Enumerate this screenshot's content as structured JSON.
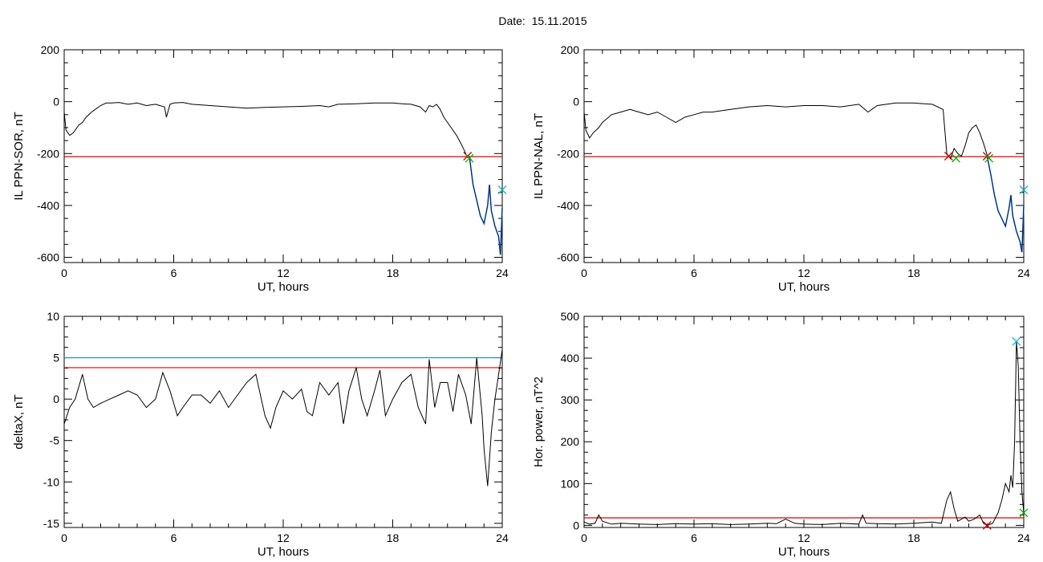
{
  "title": "Date:  15.11.2015",
  "colors": {
    "series": "#000000",
    "threshold": "#e00000",
    "threshold2": "#1a8fb0",
    "highlight": "#1560d8",
    "marker_red": "#cc0000",
    "marker_green": "#00b000",
    "marker_cyan": "#1fb0c8"
  },
  "chart_data": [
    {
      "type": "line",
      "id": "ppn-sor",
      "xlabel": "UT, hours",
      "ylabel": "IL PPN-SOR, nT",
      "xlim": [
        0,
        24
      ],
      "ylim": [
        -620,
        200
      ],
      "xticks": [
        0,
        6,
        12,
        18,
        24
      ],
      "yticks": [
        200,
        0,
        -200,
        -400,
        -600
      ],
      "threshold": -212,
      "series": [
        {
          "x": [
            0,
            0.1,
            0.3,
            0.5,
            0.8,
            1.0,
            1.2,
            1.5,
            1.8,
            2.0,
            2.3,
            2.6,
            3.0,
            3.5,
            4.0,
            4.5,
            5.0,
            5.5,
            5.6,
            5.8,
            6.0,
            6.5,
            7.0,
            8.0,
            9.0,
            10.0,
            11.0,
            12.0,
            13.0,
            14.0,
            14.5,
            15.0,
            16.0,
            17.0,
            18.0,
            18.5,
            19.0,
            19.5,
            19.8,
            20.0,
            20.2,
            20.4,
            20.6,
            20.8,
            21.0,
            21.2,
            21.5,
            21.8,
            22.0,
            22.1,
            22.2
          ],
          "y": [
            -40,
            -110,
            -130,
            -120,
            -90,
            -80,
            -60,
            -40,
            -25,
            -15,
            -5,
            -5,
            -3,
            -10,
            -5,
            -15,
            -10,
            -20,
            -60,
            -10,
            -5,
            -3,
            -10,
            -15,
            -20,
            -25,
            -22,
            -20,
            -18,
            -15,
            -20,
            -10,
            -8,
            -5,
            -5,
            -8,
            -10,
            -20,
            -40,
            -15,
            -20,
            -10,
            -30,
            -60,
            -80,
            -100,
            -130,
            -170,
            -200,
            -215,
            -210
          ]
        }
      ],
      "highlight": {
        "x": [
          22.2,
          22.4,
          22.6,
          22.8,
          23.0,
          23.2,
          23.3,
          23.4,
          23.6,
          23.8,
          23.9,
          24.0
        ],
        "y": [
          -210,
          -320,
          -380,
          -440,
          -470,
          -400,
          -320,
          -420,
          -480,
          -520,
          -590,
          -410
        ]
      },
      "markers": [
        {
          "x": 22.1,
          "y": -210,
          "color": "marker_red"
        },
        {
          "x": 22.2,
          "y": -218,
          "color": "marker_green"
        },
        {
          "x": 24.0,
          "y": -340,
          "color": "marker_cyan"
        }
      ]
    },
    {
      "type": "line",
      "id": "ppn-nal",
      "xlabel": "UT, hours",
      "ylabel": "IL PPN-NAL, nT",
      "xlim": [
        0,
        24
      ],
      "ylim": [
        -620,
        200
      ],
      "xticks": [
        0,
        6,
        12,
        18,
        24
      ],
      "yticks": [
        200,
        0,
        -200,
        -400,
        -600
      ],
      "threshold": -212,
      "series": [
        {
          "x": [
            0,
            0.1,
            0.3,
            0.5,
            0.8,
            1.0,
            1.5,
            2.0,
            2.5,
            3.0,
            3.5,
            4.0,
            4.5,
            5.0,
            5.5,
            6.0,
            6.5,
            7.0,
            8.0,
            9.0,
            10.0,
            11.0,
            12.0,
            13.0,
            14.0,
            15.0,
            15.5,
            16.0,
            17.0,
            18.0,
            19.0,
            19.6,
            19.8,
            19.9,
            20.0,
            20.2,
            20.4,
            20.6,
            20.8,
            21.0,
            21.2,
            21.4,
            21.6,
            21.8,
            22.0
          ],
          "y": [
            -40,
            -110,
            -140,
            -120,
            -100,
            -80,
            -50,
            -40,
            -30,
            -40,
            -50,
            -40,
            -60,
            -80,
            -60,
            -50,
            -40,
            -40,
            -30,
            -20,
            -15,
            -20,
            -15,
            -15,
            -20,
            -10,
            -40,
            -15,
            -5,
            -5,
            -10,
            -30,
            -200,
            -210,
            -220,
            -180,
            -200,
            -210,
            -170,
            -120,
            -100,
            -90,
            -120,
            -160,
            -205
          ]
        }
      ],
      "highlight": {
        "x": [
          22.0,
          22.2,
          22.4,
          22.6,
          22.8,
          23.0,
          23.2,
          23.3,
          23.4,
          23.6,
          23.8,
          23.9,
          24.0
        ],
        "y": [
          -210,
          -280,
          -360,
          -420,
          -450,
          -480,
          -410,
          -360,
          -440,
          -500,
          -540,
          -580,
          -400
        ]
      },
      "markers": [
        {
          "x": 19.9,
          "y": -210,
          "color": "marker_red"
        },
        {
          "x": 20.3,
          "y": -218,
          "color": "marker_green"
        },
        {
          "x": 22.0,
          "y": -210,
          "color": "marker_red"
        },
        {
          "x": 22.1,
          "y": -218,
          "color": "marker_green"
        },
        {
          "x": 24.0,
          "y": -340,
          "color": "marker_cyan"
        }
      ]
    },
    {
      "type": "line",
      "id": "deltax",
      "xlabel": "UT, hours",
      "ylabel": "deltaX, nT",
      "xlim": [
        0,
        24
      ],
      "ylim": [
        -15.5,
        10
      ],
      "xticks": [
        0,
        6,
        12,
        18,
        24
      ],
      "yticks": [
        10,
        5,
        0,
        -5,
        -10,
        -15
      ],
      "threshold": 3.8,
      "threshold2": 5.0,
      "series": [
        {
          "x": [
            0,
            0.3,
            0.6,
            1.0,
            1.3,
            1.6,
            2.0,
            2.5,
            3.0,
            3.5,
            4.0,
            4.5,
            5.0,
            5.4,
            5.8,
            6.2,
            6.5,
            7.0,
            7.5,
            8.0,
            8.5,
            9.0,
            9.5,
            10.0,
            10.5,
            10.8,
            11.0,
            11.3,
            11.6,
            12.0,
            12.5,
            13.0,
            13.3,
            13.6,
            14.0,
            14.5,
            15.0,
            15.3,
            15.6,
            16.0,
            16.3,
            16.6,
            17.0,
            17.3,
            17.6,
            18.0,
            18.5,
            19.0,
            19.4,
            19.8,
            20.0,
            20.3,
            20.6,
            21.0,
            21.3,
            21.6,
            22.0,
            22.3,
            22.6,
            22.9,
            23.0,
            23.2,
            23.4,
            23.6,
            23.8,
            24.0
          ],
          "y": [
            -3,
            -1,
            0,
            3,
            0,
            -1,
            -0.5,
            0,
            0.5,
            1,
            0.5,
            -1,
            0,
            3.2,
            1,
            -2,
            -1,
            0.5,
            0.5,
            -0.5,
            1,
            -1,
            0.5,
            2,
            3,
            0,
            -2,
            -3.5,
            -1,
            1,
            0,
            1.2,
            -1.5,
            -2,
            2,
            0.5,
            2,
            -3,
            1,
            3.8,
            0,
            -2,
            1,
            3.5,
            -2,
            0,
            2,
            3,
            -1,
            -3,
            4.8,
            -1,
            2,
            2,
            -1.5,
            3,
            0.5,
            -3,
            5,
            -2,
            -6,
            -10.5,
            -4,
            0,
            3,
            6
          ]
        }
      ],
      "markers": []
    },
    {
      "type": "line",
      "id": "hor-power",
      "xlabel": "UT, hours",
      "ylabel": "Hor. power, nT^2",
      "xlim": [
        0,
        24
      ],
      "ylim": [
        -5,
        500
      ],
      "xticks": [
        0,
        6,
        12,
        18,
        24
      ],
      "yticks": [
        500,
        400,
        300,
        200,
        100,
        0
      ],
      "threshold": 18,
      "series": [
        {
          "x": [
            0,
            0.3,
            0.6,
            0.8,
            1.0,
            1.5,
            2.0,
            3.0,
            4.0,
            5.0,
            6.0,
            7.0,
            8.0,
            9.0,
            10.0,
            10.5,
            11.0,
            11.5,
            12.0,
            13.0,
            14.0,
            15.0,
            15.2,
            15.4,
            16.0,
            17.0,
            18.0,
            19.0,
            19.5,
            19.8,
            20.0,
            20.2,
            20.4,
            20.8,
            21.0,
            21.3,
            21.6,
            21.8,
            22.0,
            22.3,
            22.6,
            22.8,
            23.0,
            23.2,
            23.3,
            23.4,
            23.5,
            23.6,
            23.7,
            23.8,
            23.9,
            24.0
          ],
          "y": [
            8,
            3,
            5,
            25,
            10,
            3,
            5,
            3,
            2,
            4,
            3,
            4,
            2,
            3,
            5,
            4,
            15,
            5,
            3,
            2,
            5,
            3,
            25,
            5,
            4,
            3,
            5,
            8,
            5,
            60,
            80,
            40,
            10,
            20,
            10,
            15,
            25,
            5,
            0,
            5,
            30,
            60,
            100,
            80,
            120,
            90,
            200,
            440,
            380,
            200,
            80,
            30
          ]
        }
      ],
      "markers": [
        {
          "x": 22.0,
          "y": 0,
          "color": "marker_red"
        },
        {
          "x": 23.6,
          "y": 440,
          "color": "marker_cyan"
        },
        {
          "x": 24.0,
          "y": 30,
          "color": "marker_green"
        }
      ]
    }
  ]
}
